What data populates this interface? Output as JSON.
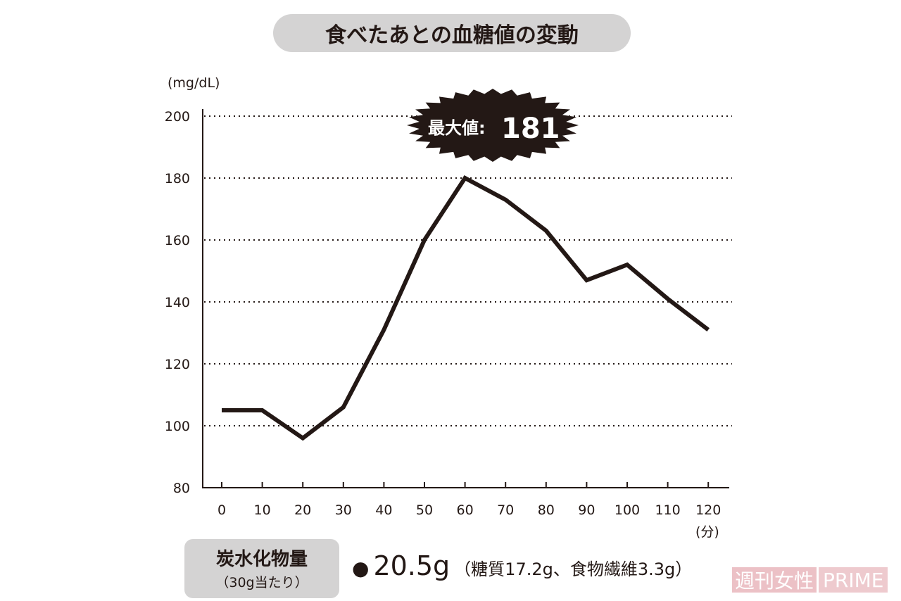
{
  "title": "食べたあとの血糖値の変動",
  "chart_data": {
    "type": "line",
    "title": "食べたあとの血糖値の変動",
    "ylabel": "(mg/dL)",
    "xlabel": "(分)",
    "x": [
      0,
      10,
      20,
      30,
      40,
      50,
      60,
      70,
      80,
      90,
      100,
      110,
      120
    ],
    "values": [
      105,
      105,
      96,
      106,
      131,
      160,
      180,
      173,
      163,
      147,
      152,
      141,
      131
    ],
    "ylim": [
      80,
      200
    ],
    "yticks": [
      80,
      100,
      120,
      140,
      160,
      180,
      200
    ],
    "xticks": [
      "0",
      "10",
      "20",
      "30",
      "40",
      "50",
      "60",
      "70",
      "80",
      "90",
      "100",
      "110",
      "120"
    ],
    "grid": "horizontal dotted",
    "annotation": {
      "label": "最大値:",
      "value": "181"
    },
    "line_color": "#231815"
  },
  "carbs": {
    "title": "炭水化物量",
    "subtitle": "（30g当たり）",
    "bullet": "●",
    "value": "20.5g",
    "detail": "（糖質17.2g、食物繊維3.3g）"
  },
  "logo": {
    "jp": "週刊女性",
    "en": "PRIME"
  }
}
